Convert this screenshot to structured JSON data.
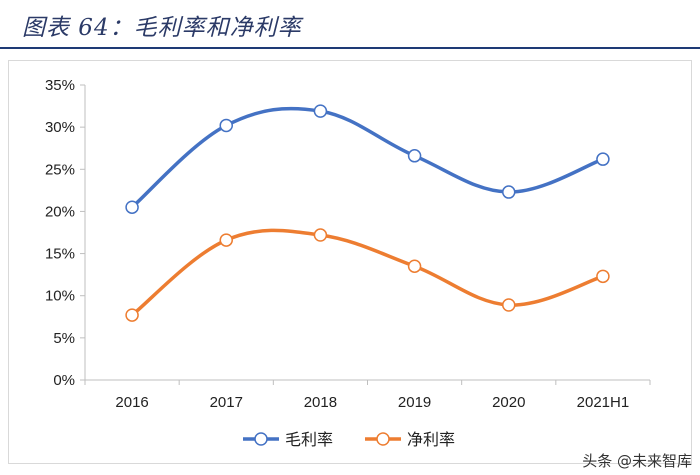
{
  "header": {
    "title": "图表 64：毛利率和净利率"
  },
  "watermark": {
    "text": "头条 @未来智库"
  },
  "colors": {
    "gross": "#4472c4",
    "net": "#ed7d31",
    "title_rule": "#1e3a75"
  },
  "chart_data": {
    "type": "line",
    "title": "",
    "categories": [
      "2016",
      "2017",
      "2018",
      "2019",
      "2020",
      "2021H1"
    ],
    "series": [
      {
        "name": "毛利率",
        "values": [
          20.5,
          30.2,
          31.9,
          26.6,
          22.3,
          26.2
        ]
      },
      {
        "name": "净利率",
        "values": [
          7.7,
          16.6,
          17.2,
          13.5,
          8.9,
          12.3
        ]
      }
    ],
    "ylim": [
      0,
      35
    ],
    "yticks": [
      "0%",
      "5%",
      "10%",
      "15%",
      "20%",
      "25%",
      "30%",
      "35%"
    ],
    "y_unit": "%",
    "smooth": true,
    "markers": "hollow-circle",
    "grid": false,
    "legend": "bottom"
  }
}
